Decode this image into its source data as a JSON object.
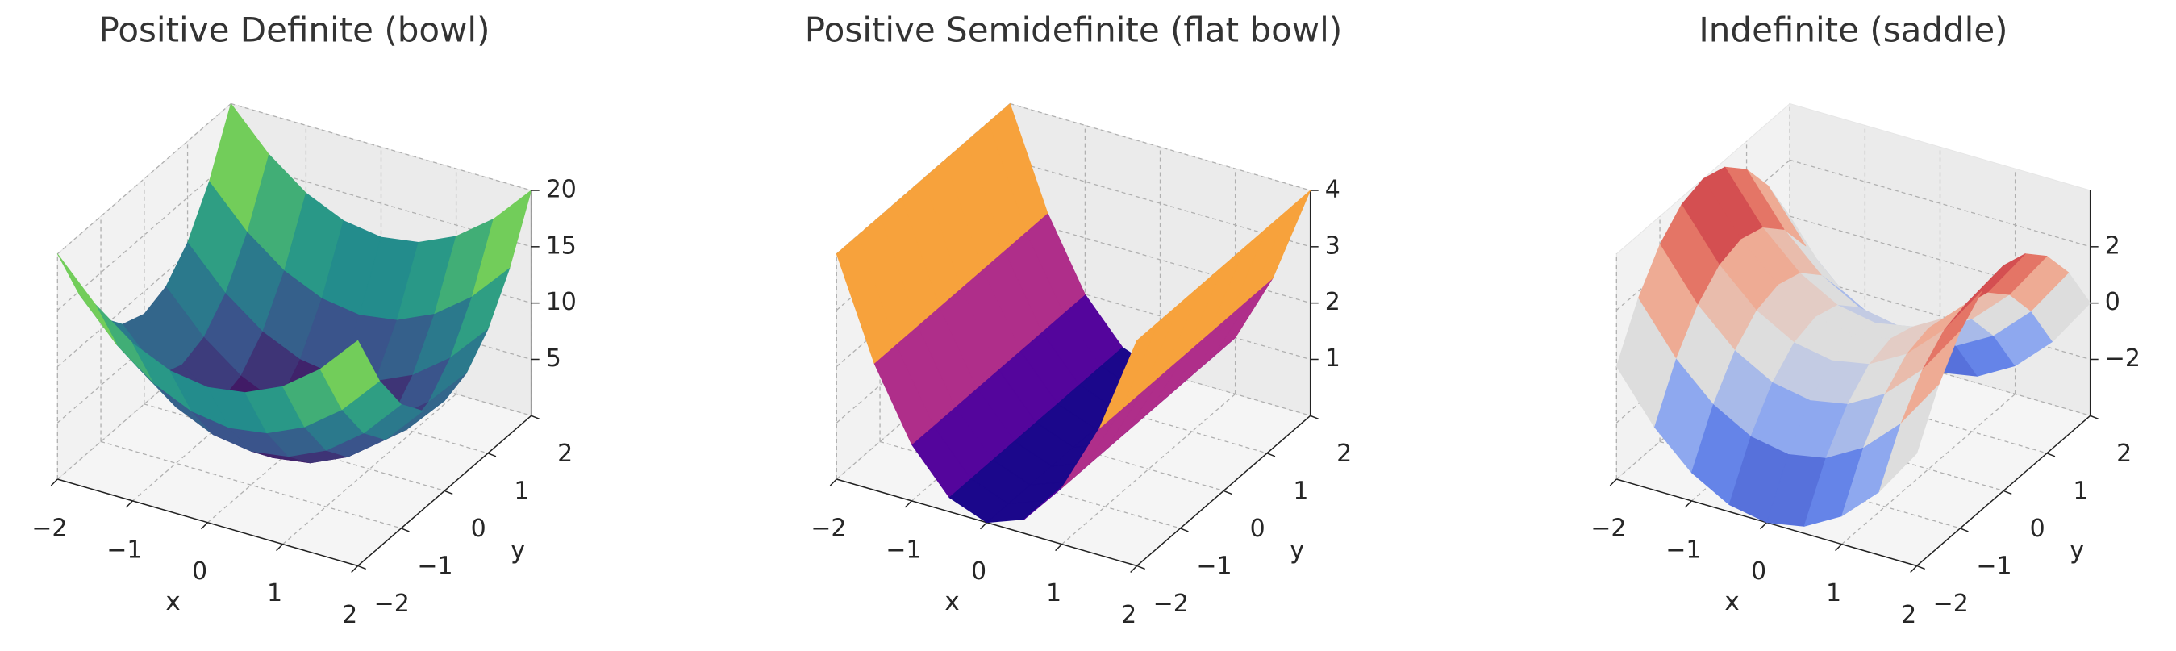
{
  "chart_data": [
    {
      "type": "surface",
      "title": "Positive Definite (bowl)",
      "xlabel": "x",
      "ylabel": "y",
      "x": [
        -2,
        -1.5,
        -1,
        -0.5,
        0,
        0.5,
        1,
        1.5,
        2
      ],
      "y": [
        -2,
        -1.5,
        -1,
        -0.5,
        0,
        0.5,
        1,
        1.5,
        2
      ],
      "z": [
        [
          20,
          16.5,
          14,
          12.5,
          12,
          12.5,
          14,
          16.5,
          20
        ],
        [
          14.75,
          11.25,
          8.75,
          7.25,
          6.75,
          7.25,
          8.75,
          11.25,
          14.75
        ],
        [
          11,
          7.5,
          5,
          3.5,
          3,
          3.5,
          5,
          7.5,
          11
        ],
        [
          8.75,
          5.25,
          2.75,
          1.25,
          0.75,
          1.25,
          2.75,
          5.25,
          8.75
        ],
        [
          8,
          4.5,
          2,
          0.5,
          0,
          0.5,
          2,
          4.5,
          8
        ],
        [
          8.75,
          5.25,
          2.75,
          1.25,
          0.75,
          1.25,
          2.75,
          5.25,
          8.75
        ],
        [
          11,
          7.5,
          5,
          3.5,
          3,
          3.5,
          5,
          7.5,
          11
        ],
        [
          14.75,
          11.25,
          8.75,
          7.25,
          6.75,
          7.25,
          8.75,
          11.25,
          14.75
        ],
        [
          20,
          16.5,
          14,
          12.5,
          12,
          12.5,
          14,
          16.5,
          20
        ]
      ],
      "xlim": [
        -2,
        2
      ],
      "ylim": [
        -2,
        2
      ],
      "zlim": [
        0,
        20
      ],
      "xticks": [
        {
          "value": -2,
          "label": "−2"
        },
        {
          "value": -1,
          "label": "−1"
        },
        0,
        1,
        2
      ],
      "yticks": [
        {
          "value": -2,
          "label": "−2"
        },
        {
          "value": -1,
          "label": "−1"
        },
        0,
        1,
        2
      ],
      "zticks": [
        5,
        10,
        15,
        20
      ],
      "colormap": [
        "#440154",
        "#3b528b",
        "#21918c",
        "#5ec962",
        "#fde725"
      ],
      "grid": true
    },
    {
      "type": "surface",
      "title": "Positive Semidefinite (flat bowl)",
      "xlabel": "x",
      "ylabel": "y",
      "x": [
        -2,
        -1.5,
        -1,
        -0.5,
        0,
        0.5,
        1,
        1.5,
        2
      ],
      "y": [
        -2,
        -1.5,
        -1,
        -0.5,
        0,
        0.5,
        1,
        1.5,
        2
      ],
      "z": [
        [
          4,
          2.25,
          1,
          0.25,
          0,
          0.25,
          1,
          2.25,
          4
        ],
        [
          4,
          2.25,
          1,
          0.25,
          0,
          0.25,
          1,
          2.25,
          4
        ],
        [
          4,
          2.25,
          1,
          0.25,
          0,
          0.25,
          1,
          2.25,
          4
        ],
        [
          4,
          2.25,
          1,
          0.25,
          0,
          0.25,
          1,
          2.25,
          4
        ],
        [
          4,
          2.25,
          1,
          0.25,
          0,
          0.25,
          1,
          2.25,
          4
        ],
        [
          4,
          2.25,
          1,
          0.25,
          0,
          0.25,
          1,
          2.25,
          4
        ],
        [
          4,
          2.25,
          1,
          0.25,
          0,
          0.25,
          1,
          2.25,
          4
        ],
        [
          4,
          2.25,
          1,
          0.25,
          0,
          0.25,
          1,
          2.25,
          4
        ],
        [
          4,
          2.25,
          1,
          0.25,
          0,
          0.25,
          1,
          2.25,
          4
        ]
      ],
      "xlim": [
        -2,
        2
      ],
      "ylim": [
        -2,
        2
      ],
      "zlim": [
        0,
        4
      ],
      "xticks": [
        {
          "value": -2,
          "label": "−2"
        },
        {
          "value": -1,
          "label": "−1"
        },
        0,
        1,
        2
      ],
      "yticks": [
        {
          "value": -2,
          "label": "−2"
        },
        {
          "value": -1,
          "label": "−1"
        },
        0,
        1,
        2
      ],
      "zticks": [
        1,
        2,
        3,
        4
      ],
      "colormap": [
        "#0d0887",
        "#7e03a8",
        "#cc4778",
        "#f89540",
        "#f0f921"
      ],
      "grid": true
    },
    {
      "type": "surface",
      "title": "Indefinite (saddle)",
      "xlabel": "x",
      "ylabel": "y",
      "x": [
        -2,
        -1.5,
        -1,
        -0.5,
        0,
        0.5,
        1,
        1.5,
        2
      ],
      "y": [
        -2,
        -1.5,
        -1,
        -0.5,
        0,
        0.5,
        1,
        1.5,
        2
      ],
      "z": [
        [
          0,
          -1.75,
          -3,
          -3.75,
          -4,
          -3.75,
          -3,
          -1.75,
          0
        ],
        [
          1.75,
          0,
          -1.25,
          -2,
          -2.25,
          -2,
          -1.25,
          0,
          1.75
        ],
        [
          3,
          1.25,
          0,
          -0.75,
          -1,
          -0.75,
          0,
          1.25,
          3
        ],
        [
          3.75,
          2,
          0.75,
          0,
          -0.25,
          0,
          0.75,
          2,
          3.75
        ],
        [
          4,
          2.25,
          1,
          0.25,
          0,
          0.25,
          1,
          2.25,
          4
        ],
        [
          3.75,
          2,
          0.75,
          0,
          -0.25,
          0,
          0.75,
          2,
          3.75
        ],
        [
          3,
          1.25,
          0,
          -0.75,
          -1,
          -0.75,
          0,
          1.25,
          3
        ],
        [
          1.75,
          0,
          -1.25,
          -2,
          -2.25,
          -2,
          -1.25,
          0,
          1.75
        ],
        [
          0,
          -1.75,
          -3,
          -3.75,
          -4,
          -3.75,
          -3,
          -1.75,
          0
        ]
      ],
      "xlim": [
        -2,
        2
      ],
      "ylim": [
        -2,
        2
      ],
      "zlim": [
        -4,
        4
      ],
      "xticks": [
        {
          "value": -2,
          "label": "−2"
        },
        {
          "value": -1,
          "label": "−1"
        },
        0,
        1,
        2
      ],
      "yticks": [
        {
          "value": -2,
          "label": "−2"
        },
        {
          "value": -1,
          "label": "−1"
        },
        0,
        1,
        2
      ],
      "zticks": [
        {
          "value": -2,
          "label": "−2"
        },
        0,
        2
      ],
      "colormap": [
        "#3b4cc0",
        "#7396f5",
        "#dddddd",
        "#f49a7b",
        "#b40426"
      ],
      "grid": true
    }
  ]
}
